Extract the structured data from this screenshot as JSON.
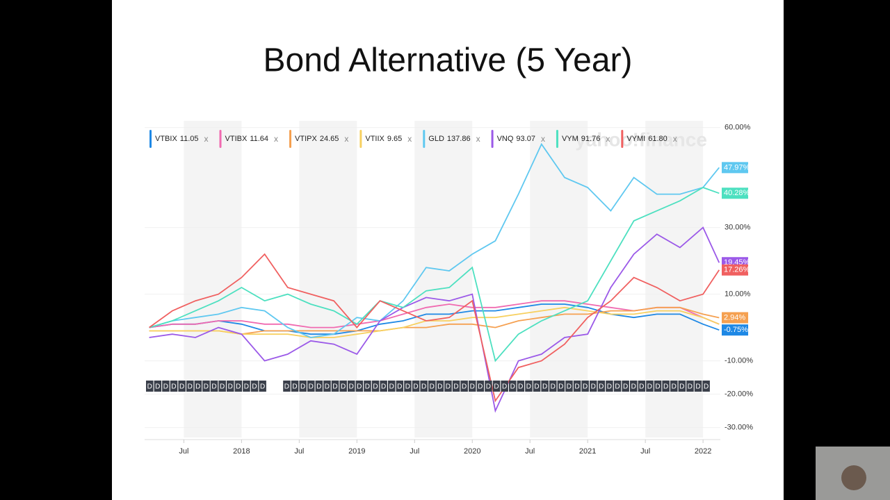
{
  "chart_data": {
    "type": "line",
    "title": "Bond Alternative (5 Year)",
    "watermark": "yahoo!finance",
    "close_label": "x",
    "dividend_marker": "D",
    "x": [
      2017.2,
      2017.4,
      2017.6,
      2017.8,
      2018.0,
      2018.2,
      2018.4,
      2018.6,
      2018.8,
      2019.0,
      2019.2,
      2019.4,
      2019.6,
      2019.8,
      2020.0,
      2020.2,
      2020.4,
      2020.6,
      2020.8,
      2021.0,
      2021.2,
      2021.4,
      2021.6,
      2021.8,
      2022.0,
      2022.14
    ],
    "xlim": [
      2017.16,
      2022.15
    ],
    "xticks": [
      {
        "value": 2017.5,
        "label": "Jul"
      },
      {
        "value": 2018,
        "label": "2018"
      },
      {
        "value": 2018.5,
        "label": "Jul"
      },
      {
        "value": 2019,
        "label": "2019"
      },
      {
        "value": 2019.5,
        "label": "Jul"
      },
      {
        "value": 2020,
        "label": "2020"
      },
      {
        "value": 2020.5,
        "label": "Jul"
      },
      {
        "value": 2021,
        "label": "2021"
      },
      {
        "value": 2021.5,
        "label": "Jul"
      },
      {
        "value": 2022,
        "label": "2022"
      }
    ],
    "ylim": [
      -33,
      62
    ],
    "yticks": [
      {
        "value": 60,
        "label": "60.00%"
      },
      {
        "value": 30,
        "label": "30.00%"
      },
      {
        "value": 10,
        "label": "10.00%"
      },
      {
        "value": -10,
        "label": "-10.00%"
      },
      {
        "value": -20,
        "label": "-20.00%"
      },
      {
        "value": -30,
        "label": "-30.00%"
      }
    ],
    "grid": true,
    "series": [
      {
        "name": "VTBIX",
        "price": "11.05",
        "color": "#1e88e5",
        "values": [
          0,
          1,
          1,
          2,
          1,
          -1,
          -1,
          -2,
          -2,
          -1,
          1,
          2,
          4,
          4,
          5,
          5,
          6,
          7,
          7,
          6,
          4,
          3,
          4,
          4,
          1,
          -0.75
        ],
        "value_labels": [
          null,
          null,
          null,
          null,
          null,
          null,
          null,
          null,
          null,
          null,
          null,
          null,
          null,
          null,
          null,
          null,
          null,
          null,
          null,
          null,
          null,
          null,
          null,
          null,
          null,
          "-0.75%"
        ]
      },
      {
        "name": "VTIBX",
        "price": "11.64",
        "color": "#f06ab0",
        "values": [
          0,
          1,
          1,
          2,
          2,
          1,
          1,
          0,
          0,
          1,
          2,
          4,
          6,
          7,
          6,
          6,
          7,
          8,
          8,
          7,
          6,
          5,
          6,
          6,
          3,
          1
        ]
      },
      {
        "name": "VTIPX",
        "price": "24.65",
        "color": "#f5a050",
        "values": [
          -1,
          -1,
          -1,
          -1,
          -2,
          -1,
          -1,
          -1,
          -1,
          -1,
          -1,
          0,
          0,
          1,
          1,
          0,
          2,
          3,
          4,
          4,
          5,
          5,
          6,
          6,
          4,
          2.94
        ],
        "value_labels": [
          null,
          null,
          null,
          null,
          null,
          null,
          null,
          null,
          null,
          null,
          null,
          null,
          null,
          null,
          null,
          null,
          null,
          null,
          null,
          null,
          null,
          null,
          null,
          null,
          null,
          "2.94%"
        ]
      },
      {
        "name": "VTIIX",
        "price": "9.65",
        "color": "#f7d060",
        "values": [
          -1,
          -1,
          -1,
          -1,
          -2,
          -2,
          -2,
          -3,
          -3,
          -2,
          -1,
          0,
          2,
          2,
          3,
          3,
          4,
          5,
          6,
          5,
          4,
          4,
          5,
          5,
          3,
          1
        ]
      },
      {
        "name": "GLD",
        "price": "137.86",
        "color": "#5fc8f0",
        "values": [
          0,
          2,
          3,
          4,
          6,
          5,
          0,
          -3,
          -2,
          3,
          2,
          8,
          18,
          17,
          22,
          26,
          40,
          55,
          45,
          42,
          35,
          45,
          40,
          40,
          42,
          47.97
        ],
        "value_labels": [
          null,
          null,
          null,
          null,
          null,
          null,
          null,
          null,
          null,
          null,
          null,
          null,
          null,
          null,
          null,
          null,
          null,
          null,
          null,
          null,
          null,
          null,
          null,
          null,
          null,
          "47.97%"
        ]
      },
      {
        "name": "VNQ",
        "price": "93.07",
        "color": "#9b59e8",
        "values": [
          -3,
          -2,
          -3,
          0,
          -2,
          -10,
          -8,
          -4,
          -5,
          -8,
          2,
          6,
          9,
          8,
          10,
          -25,
          -10,
          -8,
          -3,
          -2,
          12,
          22,
          28,
          24,
          30,
          19.45
        ],
        "value_labels": [
          null,
          null,
          null,
          null,
          null,
          null,
          null,
          null,
          null,
          null,
          null,
          null,
          null,
          null,
          null,
          null,
          null,
          null,
          null,
          null,
          null,
          null,
          null,
          null,
          null,
          "19.45%"
        ]
      },
      {
        "name": "VYM",
        "price": "91.76",
        "color": "#4de0c0",
        "values": [
          0,
          2,
          5,
          8,
          12,
          8,
          10,
          7,
          5,
          1,
          8,
          6,
          11,
          12,
          18,
          -10,
          -2,
          2,
          5,
          8,
          20,
          32,
          35,
          38,
          42,
          40.28
        ],
        "value_labels": [
          null,
          null,
          null,
          null,
          null,
          null,
          null,
          null,
          null,
          null,
          null,
          null,
          null,
          null,
          null,
          null,
          null,
          null,
          null,
          null,
          null,
          null,
          null,
          null,
          null,
          "40.28%"
        ]
      },
      {
        "name": "VYMI",
        "price": "61.80",
        "color": "#f06060",
        "values": [
          0,
          5,
          8,
          10,
          15,
          22,
          12,
          10,
          8,
          0,
          8,
          5,
          2,
          3,
          8,
          -22,
          -12,
          -10,
          -5,
          3,
          8,
          15,
          12,
          8,
          10,
          17.26
        ],
        "value_labels": [
          null,
          null,
          null,
          null,
          null,
          null,
          null,
          null,
          null,
          null,
          null,
          null,
          null,
          null,
          null,
          null,
          null,
          null,
          null,
          null,
          null,
          null,
          null,
          null,
          null,
          "17.26%"
        ]
      }
    ]
  }
}
